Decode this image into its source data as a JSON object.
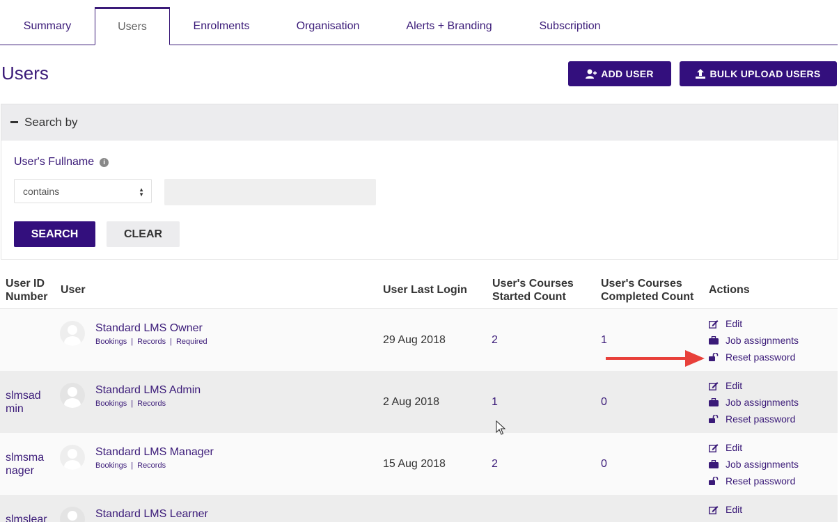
{
  "tabs": [
    {
      "label": "Summary"
    },
    {
      "label": "Users"
    },
    {
      "label": "Enrolments"
    },
    {
      "label": "Organisation"
    },
    {
      "label": "Alerts + Branding"
    },
    {
      "label": "Subscription"
    }
  ],
  "page": {
    "title": "Users"
  },
  "buttons": {
    "add_user": "ADD USER",
    "bulk_upload": "BULK UPLOAD USERS"
  },
  "search": {
    "header": "Search by",
    "field_label": "User's Fullname",
    "operator": "contains",
    "search_label": "SEARCH",
    "clear_label": "CLEAR"
  },
  "table": {
    "headers": {
      "id_line1": "User ID",
      "id_line2": "Number",
      "user": "User",
      "last_login": "User Last Login",
      "started_line1": "User's Courses",
      "started_line2": "Started Count",
      "completed_line1": "User's Courses",
      "completed_line2": "Completed Count",
      "actions": "Actions"
    },
    "links": {
      "bookings": "Bookings",
      "records": "Records",
      "required": "Required"
    },
    "actions": {
      "edit": "Edit",
      "job": "Job assignments",
      "reset": "Reset password"
    },
    "rows": [
      {
        "id": "",
        "name": "Standard LMS Owner",
        "last_login": "29 Aug 2018",
        "started": "2",
        "completed": "1"
      },
      {
        "id": "slmsadmin",
        "name": "Standard LMS Admin",
        "last_login": "2 Aug 2018",
        "started": "1",
        "completed": "0"
      },
      {
        "id": "slmsmanager",
        "name": "Standard LMS Manager",
        "last_login": "15 Aug 2018",
        "started": "2",
        "completed": "0"
      },
      {
        "id": "slmslear",
        "name": "Standard LMS Learner",
        "last_login": "",
        "started": "",
        "completed": ""
      }
    ]
  },
  "colors": {
    "primary": "#330f7d",
    "annotation_arrow": "#e8403a"
  }
}
